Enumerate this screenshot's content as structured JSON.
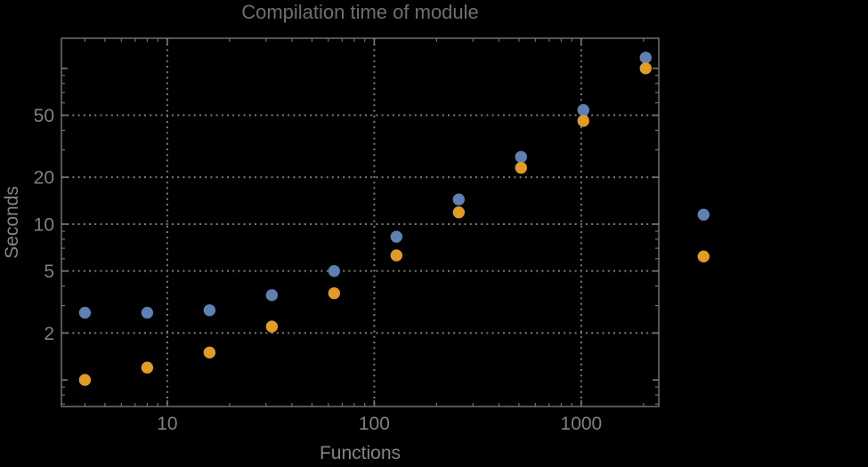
{
  "colors": {
    "background": "#000000",
    "frame": "#787878",
    "grid": "#7d7d7d",
    "tick_label": "#808080",
    "axis_label": "#848484",
    "title": "#6f6f6f",
    "series_blue": "#5E81B5",
    "series_orange": "#E19C24"
  },
  "chart_data": {
    "type": "scatter",
    "title": "Compilation time of module",
    "xlabel": "Functions",
    "ylabel": "Seconds",
    "x_scale": "log",
    "y_scale": "log",
    "grid": "dotted",
    "x": [
      4,
      8,
      16,
      32,
      64,
      128,
      256,
      512,
      1024,
      2048
    ],
    "series": [
      {
        "name": "blue",
        "color": "#5E81B5",
        "values": [
          2.7,
          2.7,
          2.8,
          3.5,
          5.0,
          8.3,
          14.4,
          27,
          54,
          117
        ]
      },
      {
        "name": "orange",
        "color": "#E19C24",
        "values": [
          1.0,
          1.2,
          1.5,
          2.2,
          3.6,
          6.3,
          11.9,
          23,
          46,
          100
        ]
      }
    ],
    "x_range": [
      3.08,
      2370
    ],
    "y_range": [
      0.675,
      156
    ],
    "x_tick_labels": [
      10,
      100,
      1000
    ],
    "y_tick_labels": [
      2,
      5,
      10,
      20,
      50
    ],
    "outside_markers": [
      {
        "series": "blue",
        "color": "#5E81B5",
        "x": 3900,
        "y": 11.5
      },
      {
        "series": "orange",
        "color": "#E19C24",
        "x": 3900,
        "y": 6.2
      }
    ]
  }
}
